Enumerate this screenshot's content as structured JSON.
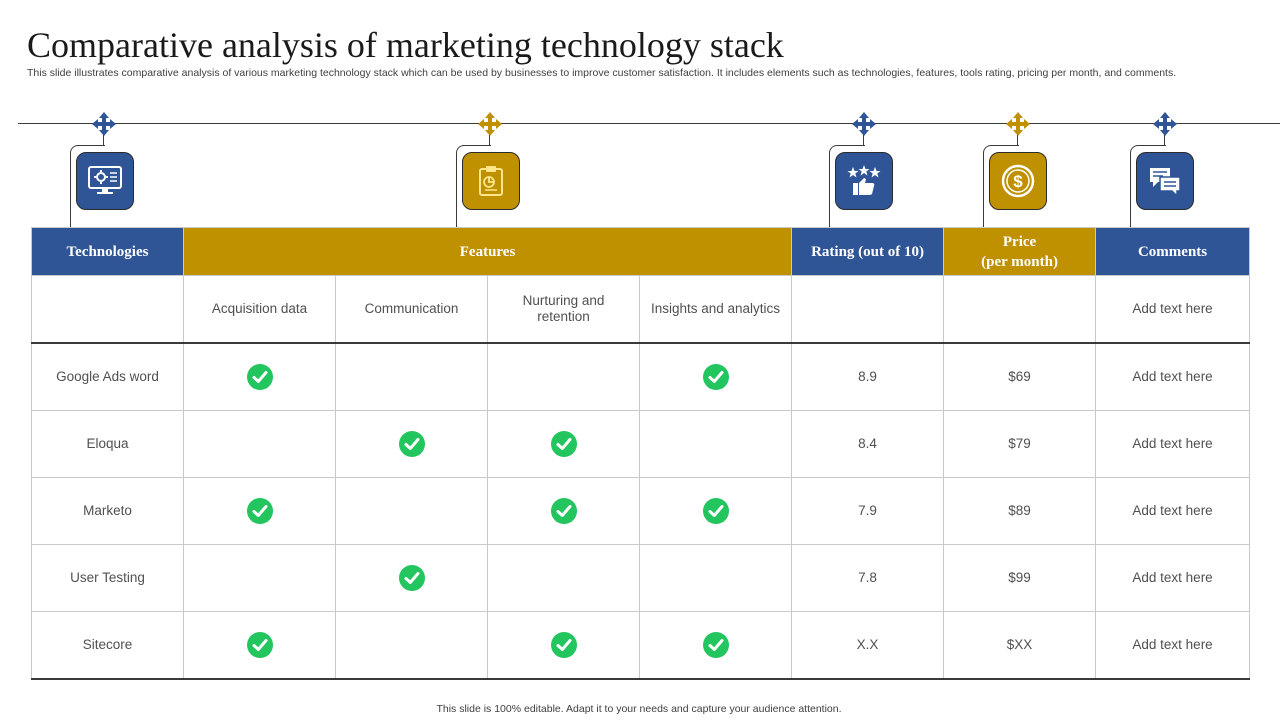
{
  "title": "Comparative analysis of marketing technology stack",
  "subtitle": "This slide illustrates comparative analysis of various marketing technology stack which can be used by businesses to improve customer satisfaction. It includes elements such as technologies, features, tools rating, pricing per month, and comments.",
  "icons": {
    "technologies": "monitor-gear-icon",
    "features": "clipboard-icon",
    "rating": "thumbs-up-stars-icon",
    "price": "dollar-coin-icon",
    "comments": "chat-bubbles-icon",
    "anchor": "four-way-arrow-icon",
    "check": "check-circle-icon"
  },
  "colors": {
    "blue": "#2f5597",
    "gold": "#bf9000",
    "check": "#22c55e"
  },
  "table": {
    "headers": {
      "technologies": "Technologies",
      "features": "Features",
      "rating": "Rating (out of 10)",
      "price_line1": "Price",
      "price_line2": "(per month)",
      "comments": "Comments"
    },
    "feature_columns": [
      "Acquisition data",
      "Communication",
      "Nurturing and retention",
      "Insights and analytics"
    ],
    "header_comment": "Add text here",
    "rows": [
      {
        "name": "Google Ads word",
        "features": [
          true,
          false,
          false,
          true
        ],
        "rating": "8.9",
        "price": "$69",
        "comment": "Add text here"
      },
      {
        "name": "Eloqua",
        "features": [
          false,
          true,
          true,
          false
        ],
        "rating": "8.4",
        "price": "$79",
        "comment": "Add text here"
      },
      {
        "name": "Marketo",
        "features": [
          true,
          false,
          true,
          true
        ],
        "rating": "7.9",
        "price": "$89",
        "comment": "Add text here"
      },
      {
        "name": "User Testing",
        "features": [
          false,
          true,
          false,
          false
        ],
        "rating": "7.8",
        "price": "$99",
        "comment": "Add text here"
      },
      {
        "name": "Sitecore",
        "features": [
          true,
          false,
          true,
          true
        ],
        "rating": "X.X",
        "price": "$XX",
        "comment": "Add text here"
      }
    ]
  },
  "footer": "This slide is 100% editable. Adapt it to your needs and capture your audience attention."
}
